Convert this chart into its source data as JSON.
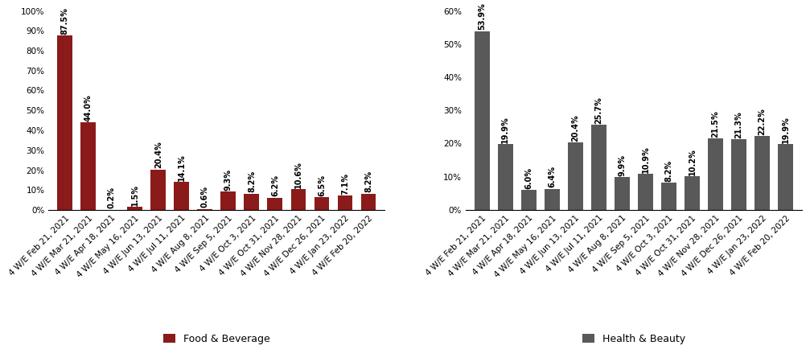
{
  "categories": [
    "4 W/E Feb 21, 2021",
    "4 W/E Mar 21, 2021",
    "4 W/E Apr 18, 2021",
    "4 W/E May 16, 2021",
    "4 W/E Jun 13, 2021",
    "4 W/E Jul 11, 2021",
    "4 W/E Aug 8, 2021",
    "4 W/E Sep 5, 2021",
    "4 W/E Oct 3, 2021",
    "4 W/E Oct 31, 2021",
    "4 W/E Nov 28, 2021",
    "4 W/E Dec 26, 2021",
    "4 W/E Jan 23, 2022",
    "4 W/E Feb 20, 2022"
  ],
  "food_values": [
    87.5,
    44.0,
    0.2,
    1.5,
    20.4,
    14.1,
    0.6,
    9.3,
    8.2,
    6.2,
    10.6,
    6.5,
    7.1,
    8.2
  ],
  "health_values": [
    53.9,
    19.9,
    6.0,
    6.4,
    20.4,
    25.7,
    9.9,
    10.9,
    8.2,
    10.2,
    21.5,
    21.3,
    22.2,
    19.9
  ],
  "food_color": "#8B1A1A",
  "health_color": "#595959",
  "food_label": "Food & Beverage",
  "health_label": "Health & Beauty",
  "food_ylim": [
    0,
    100
  ],
  "health_ylim": [
    0,
    60
  ],
  "food_yticks": [
    0,
    10,
    20,
    30,
    40,
    50,
    60,
    70,
    80,
    90,
    100
  ],
  "health_yticks": [
    0,
    10,
    20,
    30,
    40,
    50,
    60
  ],
  "label_fontsize": 7.0,
  "tick_fontsize": 7.5,
  "legend_fontsize": 9,
  "background_color": "#ffffff"
}
